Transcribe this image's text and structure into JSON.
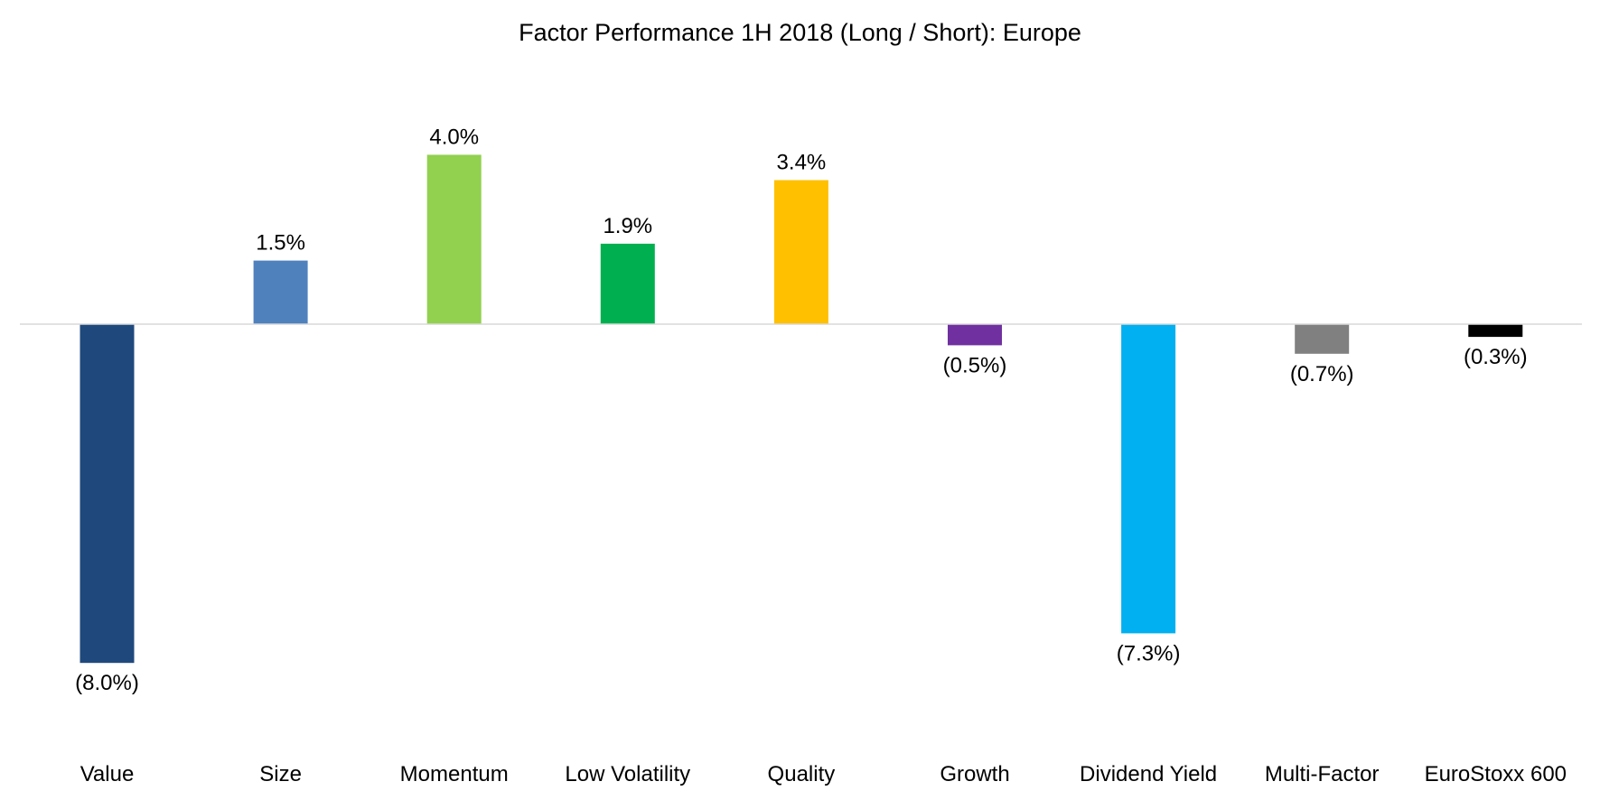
{
  "chart_data": {
    "type": "bar",
    "title": "Factor Performance 1H 2018 (Long / Short): Europe",
    "categories": [
      "Value",
      "Size",
      "Momentum",
      "Low Volatility",
      "Quality",
      "Growth",
      "Dividend Yield",
      "Multi-Factor",
      "EuroStoxx 600"
    ],
    "values": [
      -8.0,
      1.5,
      4.0,
      1.9,
      3.4,
      -0.5,
      -7.3,
      -0.7,
      -0.3
    ],
    "data_labels": [
      "(8.0%)",
      "1.5%",
      "4.0%",
      "1.9%",
      "3.4%",
      "(0.5%)",
      "(7.3%)",
      "(0.7%)",
      "(0.3%)"
    ],
    "colors": [
      "#1f497d",
      "#4f81bd",
      "#92d050",
      "#00b050",
      "#ffc000",
      "#7030a0",
      "#00b0f0",
      "#808080",
      "#000000"
    ],
    "unit": "%",
    "grid": false,
    "legend": "none",
    "zero_line_color": "#d9d9d9"
  }
}
